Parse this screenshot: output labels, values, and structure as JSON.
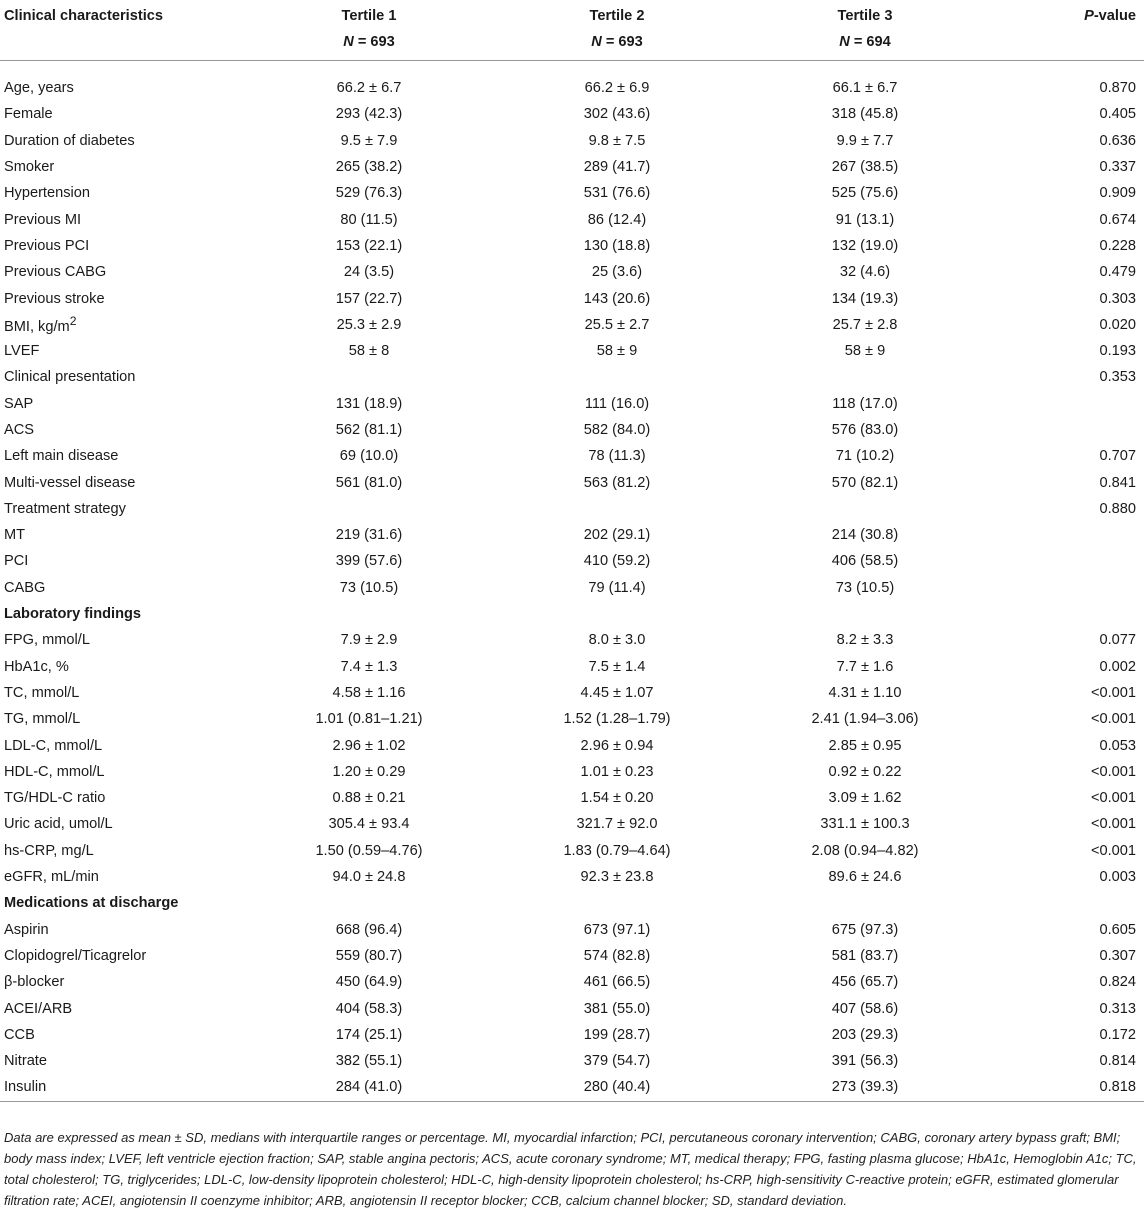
{
  "header": {
    "col0": "Clinical characteristics",
    "col1": "Tertile 1",
    "col2": "Tertile 2",
    "col3": "Tertile 3",
    "col4_italic": "P",
    "col4_rest": "-value",
    "n_label": "N",
    "n1": " = 693",
    "n2": " = 693",
    "n3": " = 694"
  },
  "rows": [
    {
      "label": "Age, years",
      "t1": "66.2 ± 6.7",
      "t2": "66.2 ± 6.9",
      "t3": "66.1 ± 6.7",
      "p": "0.870"
    },
    {
      "label": "Female",
      "t1": "293 (42.3)",
      "t2": "302 (43.6)",
      "t3": "318 (45.8)",
      "p": "0.405"
    },
    {
      "label": "Duration of diabetes",
      "t1": "9.5 ± 7.9",
      "t2": "9.8 ± 7.5",
      "t3": "9.9 ± 7.7",
      "p": "0.636"
    },
    {
      "label": "Smoker",
      "t1": "265 (38.2)",
      "t2": "289 (41.7)",
      "t3": "267 (38.5)",
      "p": "0.337"
    },
    {
      "label": "Hypertension",
      "t1": "529 (76.3)",
      "t2": "531 (76.6)",
      "t3": "525 (75.6)",
      "p": "0.909"
    },
    {
      "label": "Previous MI",
      "t1": "80 (11.5)",
      "t2": "86 (12.4)",
      "t3": "91 (13.1)",
      "p": "0.674"
    },
    {
      "label": "Previous PCI",
      "t1": "153 (22.1)",
      "t2": "130 (18.8)",
      "t3": "132 (19.0)",
      "p": "0.228"
    },
    {
      "label": "Previous CABG",
      "t1": "24 (3.5)",
      "t2": "25 (3.6)",
      "t3": "32 (4.6)",
      "p": "0.479"
    },
    {
      "label": "Previous stroke",
      "t1": "157 (22.7)",
      "t2": "143 (20.6)",
      "t3": "134 (19.3)",
      "p": "0.303"
    },
    {
      "label": "BMI, kg/m",
      "sup": "2",
      "t1": "25.3 ± 2.9",
      "t2": "25.5 ± 2.7",
      "t3": "25.7 ± 2.8",
      "p": "0.020"
    },
    {
      "label": "LVEF",
      "t1": "58 ± 8",
      "t2": "58 ± 9",
      "t3": "58 ± 9",
      "p": "0.193"
    },
    {
      "label": "Clinical presentation",
      "t1": "",
      "t2": "",
      "t3": "",
      "p": "0.353"
    },
    {
      "label": "SAP",
      "t1": "131 (18.9)",
      "t2": "111 (16.0)",
      "t3": "118 (17.0)",
      "p": ""
    },
    {
      "label": "ACS",
      "t1": "562 (81.1)",
      "t2": "582 (84.0)",
      "t3": "576 (83.0)",
      "p": ""
    },
    {
      "label": "Left main disease",
      "t1": "69 (10.0)",
      "t2": "78 (11.3)",
      "t3": "71 (10.2)",
      "p": "0.707"
    },
    {
      "label": "Multi-vessel disease",
      "t1": "561 (81.0)",
      "t2": "563 (81.2)",
      "t3": "570 (82.1)",
      "p": "0.841"
    },
    {
      "label": "Treatment strategy",
      "t1": "",
      "t2": "",
      "t3": "",
      "p": "0.880"
    },
    {
      "label": "MT",
      "t1": "219 (31.6)",
      "t2": "202 (29.1)",
      "t3": "214 (30.8)",
      "p": ""
    },
    {
      "label": "PCI",
      "t1": "399 (57.6)",
      "t2": "410 (59.2)",
      "t3": "406 (58.5)",
      "p": ""
    },
    {
      "label": "CABG",
      "t1": "73 (10.5)",
      "t2": "79 (11.4)",
      "t3": "73 (10.5)",
      "p": ""
    },
    {
      "section": "Laboratory findings"
    },
    {
      "label": "FPG, mmol/L",
      "t1": "7.9 ± 2.9",
      "t2": "8.0 ± 3.0",
      "t3": "8.2 ± 3.3",
      "p": "0.077"
    },
    {
      "label": "HbA1c, %",
      "t1": "7.4 ± 1.3",
      "t2": "7.5 ± 1.4",
      "t3": "7.7 ± 1.6",
      "p": "0.002"
    },
    {
      "label": "TC, mmol/L",
      "t1": "4.58 ± 1.16",
      "t2": "4.45 ± 1.07",
      "t3": "4.31 ± 1.10",
      "p": "<0.001"
    },
    {
      "label": "TG, mmol/L",
      "t1": "1.01 (0.81–1.21)",
      "t2": "1.52 (1.28–1.79)",
      "t3": "2.41 (1.94–3.06)",
      "p": "<0.001"
    },
    {
      "label": "LDL-C, mmol/L",
      "t1": "2.96 ± 1.02",
      "t2": "2.96 ± 0.94",
      "t3": "2.85 ± 0.95",
      "p": "0.053"
    },
    {
      "label": "HDL-C, mmol/L",
      "t1": "1.20 ± 0.29",
      "t2": "1.01 ± 0.23",
      "t3": "0.92 ± 0.22",
      "p": "<0.001"
    },
    {
      "label": "TG/HDL-C ratio",
      "t1": "0.88 ± 0.21",
      "t2": "1.54 ± 0.20",
      "t3": "3.09 ± 1.62",
      "p": "<0.001"
    },
    {
      "label": "Uric acid, umol/L",
      "t1": "305.4 ± 93.4",
      "t2": "321.7 ± 92.0",
      "t3": "331.1 ± 100.3",
      "p": "<0.001"
    },
    {
      "label": "hs-CRP, mg/L",
      "t1": "1.50 (0.59–4.76)",
      "t2": "1.83 (0.79–4.64)",
      "t3": "2.08 (0.94–4.82)",
      "p": "<0.001"
    },
    {
      "label": "eGFR, mL/min",
      "t1": "94.0 ± 24.8",
      "t2": "92.3 ± 23.8",
      "t3": "89.6 ± 24.6",
      "p": "0.003"
    },
    {
      "section": "Medications at discharge"
    },
    {
      "label": "Aspirin",
      "t1": "668 (96.4)",
      "t2": "673 (97.1)",
      "t3": "675 (97.3)",
      "p": "0.605"
    },
    {
      "label": "Clopidogrel/Ticagrelor",
      "t1": "559 (80.7)",
      "t2": "574 (82.8)",
      "t3": "581 (83.7)",
      "p": "0.307"
    },
    {
      "label": "β-blocker",
      "t1": "450 (64.9)",
      "t2": "461 (66.5)",
      "t3": "456 (65.7)",
      "p": "0.824"
    },
    {
      "label": "ACEI/ARB",
      "t1": "404 (58.3)",
      "t2": "381 (55.0)",
      "t3": "407 (58.6)",
      "p": "0.313"
    },
    {
      "label": "CCB",
      "t1": "174 (25.1)",
      "t2": "199 (28.7)",
      "t3": "203 (29.3)",
      "p": "0.172"
    },
    {
      "label": "Nitrate",
      "t1": "382 (55.1)",
      "t2": "379 (54.7)",
      "t3": "391 (56.3)",
      "p": "0.814"
    },
    {
      "label": "Insulin",
      "t1": "284 (41.0)",
      "t2": "280 (40.4)",
      "t3": "273 (39.3)",
      "p": "0.818"
    }
  ],
  "footnote": "Data are expressed as mean ± SD, medians with interquartile ranges or percentage. MI, myocardial infarction; PCI, percutaneous coronary intervention; CABG, coronary artery bypass graft; BMI; body mass index; LVEF, left ventricle ejection fraction; SAP, stable angina pectoris; ACS, acute coronary syndrome; MT, medical therapy; FPG, fasting plasma glucose; HbA1c, Hemoglobin A1c; TC, total cholesterol; TG, triglycerides; LDL-C, low-density lipoprotein cholesterol; HDL-C, high-density lipoprotein cholesterol; hs-CRP, high-sensitivity C-reactive protein; eGFR, estimated glomerular filtration rate; ACEI, angiotensin II coenzyme inhibitor; ARB, angiotensin II receptor blocker; CCB, calcium channel blocker; SD, standard deviation."
}
